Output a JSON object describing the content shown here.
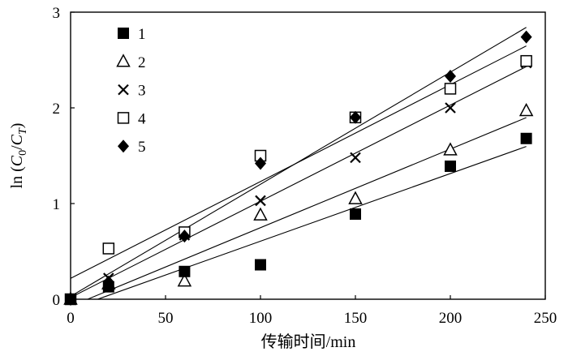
{
  "chart_data": {
    "type": "scatter",
    "trendlines": "linear",
    "xlabel": "传输时间/min",
    "ylabel": {
      "lead": "ln (",
      "num": "C",
      "num_sub": "0",
      "slash": "/",
      "den": "C",
      "den_sub": "T",
      "tail": ")"
    },
    "xlim": [
      0,
      250
    ],
    "ylim": [
      0,
      3
    ],
    "xticks": [
      0,
      50,
      100,
      150,
      200,
      250
    ],
    "yticks": [
      0,
      1,
      2,
      3
    ],
    "grid": false,
    "legend": "top-left",
    "x": [
      0,
      20,
      60,
      100,
      150,
      200,
      240
    ],
    "series": [
      {
        "name": "1",
        "marker": "filled-square",
        "values": [
          0,
          0.13,
          0.29,
          0.36,
          0.89,
          1.39,
          1.68
        ]
      },
      {
        "name": "2",
        "marker": "open-triangle",
        "values": [
          0,
          0.16,
          0.19,
          0.88,
          1.05,
          1.56,
          1.97
        ]
      },
      {
        "name": "3",
        "marker": "x-mark",
        "values": [
          0,
          0.22,
          0.67,
          1.03,
          1.48,
          2.0,
          2.47
        ]
      },
      {
        "name": "4",
        "marker": "open-square",
        "values": [
          0,
          0.53,
          0.7,
          1.5,
          1.9,
          2.2,
          2.49
        ]
      },
      {
        "name": "5",
        "marker": "filled-diamond",
        "values": [
          0,
          0.18,
          0.66,
          1.42,
          1.9,
          2.33,
          2.74
        ]
      }
    ]
  }
}
